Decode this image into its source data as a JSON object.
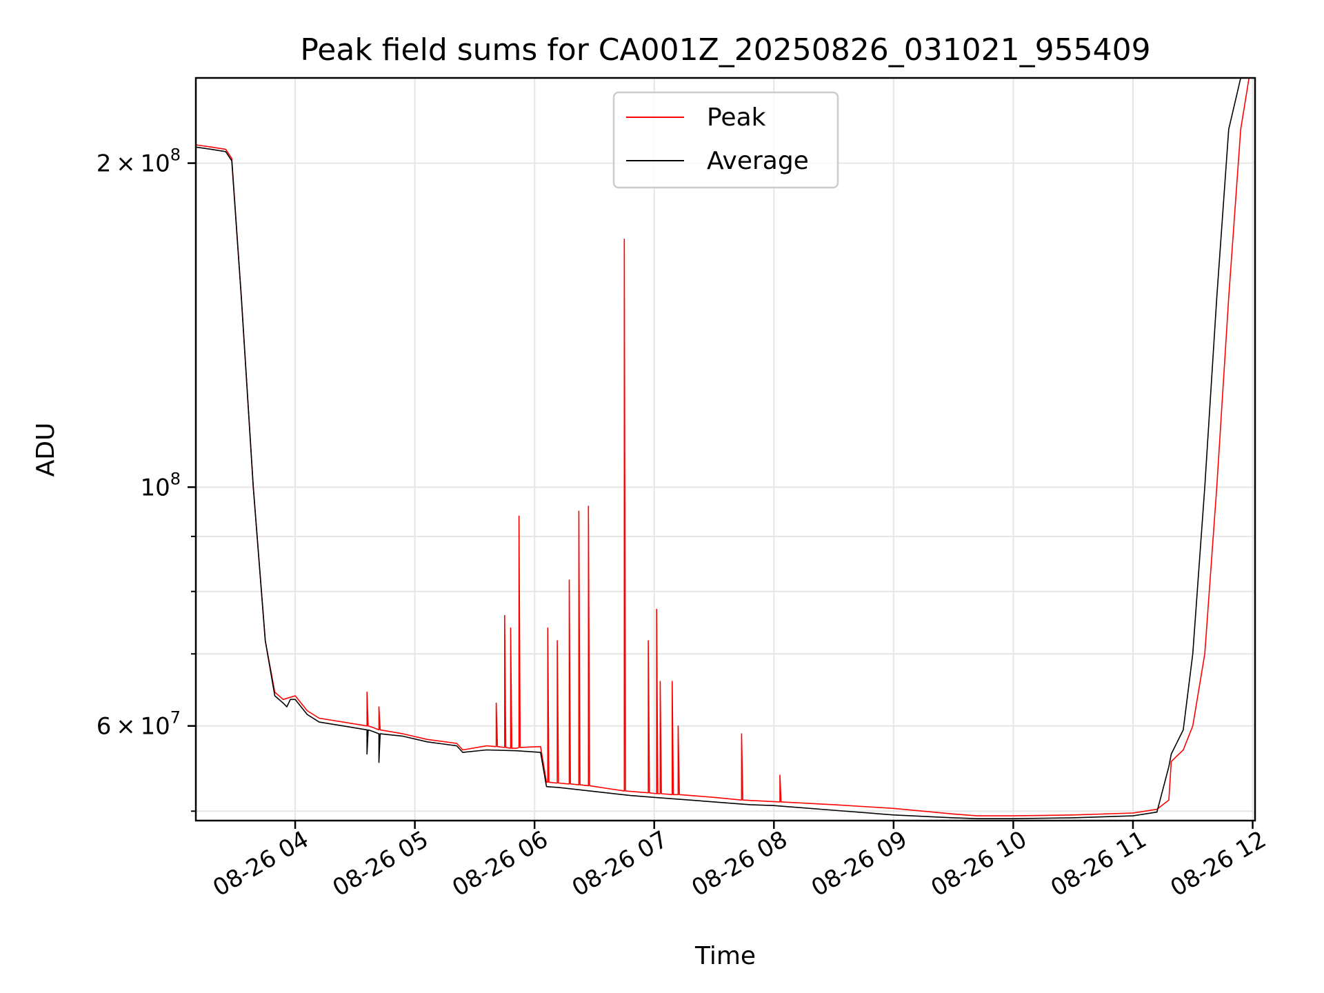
{
  "chart_data": {
    "type": "line",
    "title": "Peak field sums for CA001Z_20250826_031021_955409",
    "xlabel": "Time",
    "ylabel": "ADU",
    "x_units": "hours since 08-26 00:00",
    "xlim": [
      3.17,
      12.02
    ],
    "ylim": [
      49000000,
      240000000
    ],
    "yscale": "log",
    "grid": true,
    "legend_position": "top-center",
    "x_ticks": [
      {
        "value": 4,
        "label": "08-26 04"
      },
      {
        "value": 5,
        "label": "08-26 05"
      },
      {
        "value": 6,
        "label": "08-26 06"
      },
      {
        "value": 7,
        "label": "08-26 07"
      },
      {
        "value": 8,
        "label": "08-26 08"
      },
      {
        "value": 9,
        "label": "08-26 09"
      },
      {
        "value": 10,
        "label": "08-26 10"
      },
      {
        "value": 11,
        "label": "08-26 11"
      },
      {
        "value": 12,
        "label": "08-26 12"
      }
    ],
    "y_ticks": [
      {
        "value": 200000000,
        "mantissa": "2",
        "exponent": "8"
      },
      {
        "value": 100000000,
        "mantissa": "",
        "exponent": "8"
      },
      {
        "value": 60000000,
        "mantissa": "6",
        "exponent": "7"
      }
    ],
    "y_minor_ticks": [
      50000000,
      70000000,
      80000000,
      90000000
    ],
    "series": [
      {
        "name": "Peak",
        "color": "#ff0000",
        "x": [
          3.17,
          3.3,
          3.42,
          3.47,
          3.55,
          3.65,
          3.75,
          3.83,
          3.9,
          4.0,
          4.1,
          4.2,
          4.4,
          4.6,
          4.6,
          4.61,
          4.65,
          4.7,
          4.7,
          4.71,
          4.9,
          5.1,
          5.35,
          5.4,
          5.6,
          5.68,
          5.68,
          5.69,
          5.75,
          5.75,
          5.76,
          5.8,
          5.8,
          5.81,
          5.85,
          5.87,
          5.87,
          5.88,
          6.05,
          6.1,
          6.11,
          6.11,
          6.12,
          6.18,
          6.19,
          6.19,
          6.2,
          6.28,
          6.29,
          6.29,
          6.3,
          6.37,
          6.37,
          6.38,
          6.45,
          6.45,
          6.46,
          6.75,
          6.75,
          6.76,
          6.95,
          6.95,
          6.96,
          7.02,
          7.02,
          7.03,
          7.05,
          7.05,
          7.06,
          7.15,
          7.15,
          7.16,
          7.2,
          7.2,
          7.21,
          7.5,
          7.73,
          7.73,
          7.74,
          8.05,
          8.05,
          8.06,
          8.5,
          9.0,
          9.5,
          9.7,
          10.0,
          10.5,
          11.0,
          11.2,
          11.3,
          11.32,
          11.42,
          11.5,
          11.6,
          11.7,
          11.8,
          11.9,
          11.97,
          12.02
        ],
        "y": [
          208000000,
          207000000,
          206000000,
          202000000,
          150000000,
          100000000,
          72000000,
          64500000,
          63500000,
          64000000,
          62000000,
          61000000,
          60500000,
          60000000,
          64500000,
          60000000,
          59800000,
          59500000,
          62500000,
          59500000,
          59000000,
          58300000,
          57800000,
          57000000,
          57500000,
          57400000,
          63000000,
          57400000,
          57300000,
          76000000,
          57300000,
          57200000,
          74000000,
          57200000,
          57200000,
          57300000,
          94000000,
          57300000,
          57400000,
          53200000,
          53200000,
          74000000,
          53200000,
          53100000,
          53100000,
          72000000,
          53100000,
          53000000,
          53000000,
          82000000,
          53000000,
          52900000,
          95000000,
          52900000,
          52800000,
          96000000,
          52800000,
          52200000,
          170000000,
          52200000,
          52000000,
          72000000,
          52000000,
          51900000,
          77000000,
          51900000,
          51900000,
          66000000,
          51900000,
          51800000,
          66000000,
          51800000,
          51800000,
          60000000,
          51800000,
          51500000,
          51200000,
          59000000,
          51200000,
          51000000,
          54000000,
          51000000,
          50700000,
          50300000,
          49700000,
          49500000,
          49500000,
          49600000,
          49800000,
          50200000,
          51200000,
          55600000,
          57000000,
          60000000,
          70000000,
          100000000,
          150000000,
          215000000,
          240000000,
          240000000
        ]
      },
      {
        "name": "Average",
        "color": "#000000",
        "x": [
          3.17,
          3.3,
          3.42,
          3.47,
          3.55,
          3.65,
          3.75,
          3.83,
          3.9,
          3.93,
          3.96,
          4.0,
          4.1,
          4.2,
          4.4,
          4.6,
          4.6,
          4.61,
          4.65,
          4.7,
          4.7,
          4.71,
          4.9,
          5.1,
          5.35,
          5.4,
          5.6,
          5.85,
          6.05,
          6.1,
          6.2,
          6.4,
          6.6,
          6.8,
          7.0,
          7.2,
          7.5,
          7.8,
          8.0,
          8.5,
          9.0,
          9.5,
          9.7,
          10.0,
          10.5,
          11.0,
          11.2,
          11.3,
          11.32,
          11.42,
          11.5,
          11.6,
          11.7,
          11.8,
          11.9,
          11.97,
          12.02
        ],
        "y": [
          207000000,
          206000000,
          205000000,
          201000000,
          150000000,
          100000000,
          72000000,
          64000000,
          63000000,
          62500000,
          63500000,
          63500000,
          61500000,
          60500000,
          60000000,
          59500000,
          56500000,
          59500000,
          59300000,
          59000000,
          55500000,
          59000000,
          58700000,
          58000000,
          57500000,
          56700000,
          57000000,
          56900000,
          56700000,
          52700000,
          52600000,
          52300000,
          52000000,
          51700000,
          51500000,
          51300000,
          51000000,
          50700000,
          50600000,
          50100000,
          49600000,
          49300000,
          49200000,
          49200000,
          49300000,
          49500000,
          49900000,
          55000000,
          56500000,
          59500000,
          70000000,
          100000000,
          150000000,
          215000000,
          240000000,
          240000000,
          240000000
        ]
      }
    ]
  }
}
